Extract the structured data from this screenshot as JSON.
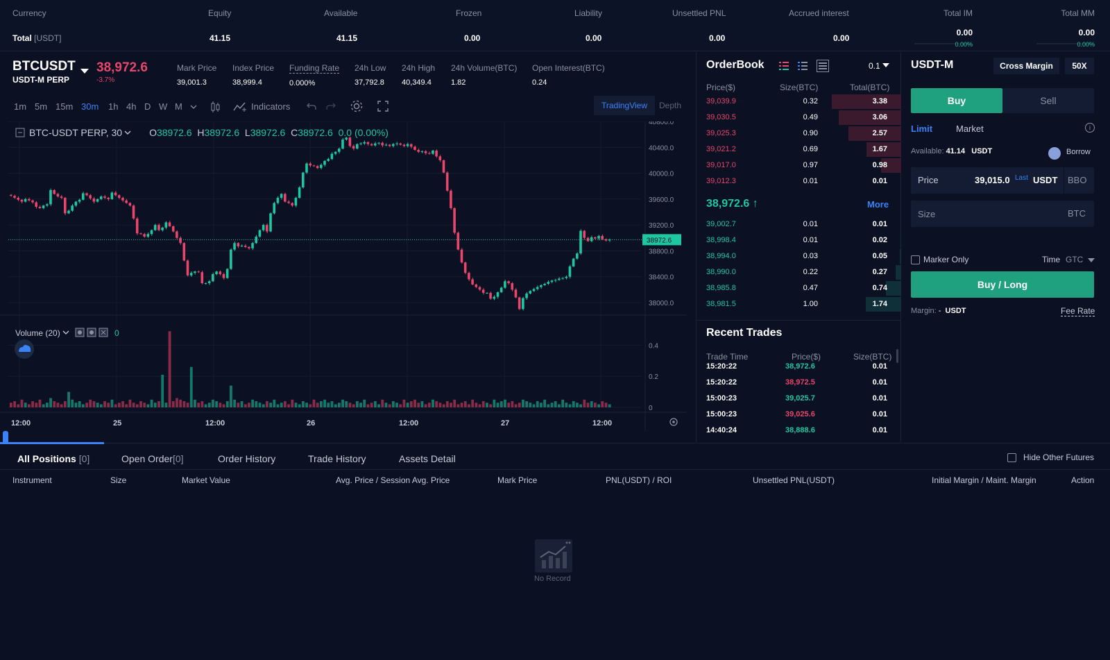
{
  "topbar": {
    "columns": [
      {
        "header": "Currency",
        "value": "Total",
        "value_suffix": "[USDT]"
      },
      {
        "header": "Equity",
        "value": "41.15"
      },
      {
        "header": "Available",
        "value": "41.15"
      },
      {
        "header": "Frozen",
        "value": "0.00"
      },
      {
        "header": "Liability",
        "value": "0.00"
      },
      {
        "header": "Unsettled PNL",
        "value": "0.00"
      },
      {
        "header": "Accrued interest",
        "value": "0.00"
      },
      {
        "header": "Total IM",
        "value": "0.00",
        "pct": "0.00%"
      },
      {
        "header": "Total MM",
        "value": "0.00",
        "pct": "0.00%"
      }
    ]
  },
  "ticker": {
    "symbol": "BTCUSDT",
    "type": "USDT-M PERP",
    "price": "38,972.6",
    "change": "-3.7%",
    "stats": [
      {
        "label": "Mark Price",
        "value": "39,001.3"
      },
      {
        "label": "Index Price",
        "value": "38,999.4"
      },
      {
        "label": "Funding Rate",
        "value": "0.000%"
      },
      {
        "label": "24h Low",
        "value": "37,792.8"
      },
      {
        "label": "24h High",
        "value": "40,349.4"
      },
      {
        "label": "24h Volume(BTC)",
        "value": "1.82"
      },
      {
        "label": "Open Interest(BTC)",
        "value": "0.24"
      }
    ]
  },
  "toolbar": {
    "timeframes": [
      "1m",
      "5m",
      "15m",
      "30m",
      "1h",
      "4h",
      "D",
      "W",
      "M"
    ],
    "active_timeframe": "30m",
    "indicators_label": "Indicators",
    "tradingview_label": "TradingView",
    "depth_label": "Depth"
  },
  "chart_legend": {
    "title": "BTC-USDT PERP, 30",
    "o_label": "O",
    "o_value": "38972.6",
    "h_label": "H",
    "h_value": "38972.6",
    "l_label": "L",
    "l_value": "38972.6",
    "c_label": "C",
    "c_value": "38972.6",
    "change_value": "0.0 (0.00%)"
  },
  "volume_legend": {
    "label": "Volume (20)",
    "value": "0"
  },
  "chart_data": [
    {
      "type": "candlestick",
      "title": "BTC-USDT PERP, 30",
      "y_ticks": [
        "40800.0",
        "40400.0",
        "40000.0",
        "39600.0",
        "39200.0",
        "38800.0",
        "38400.0",
        "38000.0"
      ],
      "ylim": [
        37850,
        40800
      ],
      "x_ticks": [
        "12:00",
        "25",
        "12:00",
        "26",
        "12:00",
        "27",
        "12:00"
      ],
      "last_price_label": "38972.6",
      "last_price": 38972.6,
      "series": [
        {
          "name": "",
          "close": [
            39650,
            39620,
            39590,
            39560,
            39600,
            39580,
            39550,
            39480,
            39460,
            39500,
            39520,
            39740,
            39680,
            39640,
            39620,
            39380,
            39420,
            39500,
            39560,
            39590,
            39690,
            39660,
            39610,
            39560,
            39600,
            39640,
            39620,
            39600,
            39700,
            39660,
            39620,
            39580,
            39540,
            39500,
            39300,
            39070,
            39060,
            39020,
            39060,
            39120,
            39200,
            39120,
            39160,
            39240,
            39180,
            39100,
            39000,
            38920,
            38650,
            38420,
            38460,
            38480,
            38470,
            38300,
            38300,
            38330,
            38440,
            38480,
            38440,
            38380,
            38520,
            38820,
            38920,
            38870,
            38880,
            38860,
            38840,
            38920,
            39020,
            39120,
            39200,
            39100,
            39380,
            39540,
            39620,
            39680,
            39560,
            39540,
            39500,
            39620,
            39780,
            40010,
            40150,
            40120,
            40110,
            40080,
            40130,
            40190,
            40220,
            40300,
            40330,
            40380,
            40520,
            40550,
            40420,
            40380,
            40450,
            40460,
            40480,
            40450,
            40430,
            40460,
            40470,
            40430,
            40440,
            40420,
            40450,
            40460,
            40440,
            40420,
            40450,
            40410,
            40360,
            40330,
            40340,
            40310,
            40300,
            40350,
            40260,
            40200,
            40010,
            39730,
            39460,
            39080,
            38820,
            38620,
            38460,
            38360,
            38280,
            38240,
            38200,
            38150,
            38150,
            38060,
            38090,
            38160,
            38230,
            38330,
            38300,
            38200,
            38080,
            37900,
            38070,
            38140,
            38180,
            38210,
            38240,
            38270,
            38290,
            38320,
            38340,
            38350,
            38370,
            38380,
            38400,
            38560,
            38680,
            38760,
            39110,
            39000,
            38950,
            39010,
            38990,
            39030,
            38980,
            38960,
            38972.6
          ]
        }
      ]
    },
    {
      "type": "bar",
      "title": "Volume (20)",
      "y_ticks": [
        "0.4",
        "0.2",
        "0"
      ],
      "ylim": [
        0,
        0.5
      ],
      "series": [
        {
          "name": "Volume",
          "values": [
            0.03,
            0.04,
            0.02,
            0.05,
            0.03,
            0.02,
            0.04,
            0.03,
            0.05,
            0.02,
            0.03,
            0.06,
            0.04,
            0.03,
            0.02,
            0.04,
            0.1,
            0.05,
            0.03,
            0.04,
            0.02,
            0.03,
            0.05,
            0.04,
            0.03,
            0.02,
            0.04,
            0.03,
            0.05,
            0.02,
            0.03,
            0.04,
            0.02,
            0.05,
            0.03,
            0.02,
            0.04,
            0.03,
            0.02,
            0.05,
            0.03,
            0.04,
            0.21,
            0.03,
            0.49,
            0.04,
            0.06,
            0.05,
            0.04,
            0.03,
            0.26,
            0.05,
            0.03,
            0.04,
            0.02,
            0.03,
            0.05,
            0.04,
            0.03,
            0.02,
            0.04,
            0.14,
            0.05,
            0.03,
            0.04,
            0.02,
            0.03,
            0.05,
            0.04,
            0.03,
            0.02,
            0.04,
            0.03,
            0.05,
            0.02,
            0.03,
            0.04,
            0.02,
            0.05,
            0.03,
            0.02,
            0.04,
            0.03,
            0.02,
            0.05,
            0.03,
            0.04,
            0.05,
            0.03,
            0.04,
            0.02,
            0.03,
            0.05,
            0.04,
            0.03,
            0.02,
            0.04,
            0.03,
            0.05,
            0.02,
            0.03,
            0.04,
            0.02,
            0.05,
            0.03,
            0.02,
            0.04,
            0.03,
            0.02,
            0.05,
            0.03,
            0.04,
            0.05,
            0.03,
            0.04,
            0.02,
            0.03,
            0.05,
            0.04,
            0.03,
            0.02,
            0.04,
            0.03,
            0.05,
            0.02,
            0.03,
            0.04,
            0.02,
            0.05,
            0.03,
            0.02,
            0.04,
            0.03,
            0.02,
            0.05,
            0.03,
            0.04,
            0.05,
            0.03,
            0.04,
            0.02,
            0.03,
            0.05,
            0.04,
            0.03,
            0.02,
            0.04,
            0.03,
            0.05,
            0.02,
            0.03,
            0.04,
            0.02,
            0.05,
            0.03,
            0.02,
            0.04,
            0.03,
            0.02,
            0.05,
            0.03,
            0.04,
            0.03,
            0.02,
            0.04,
            0.03,
            0.02
          ]
        }
      ]
    }
  ],
  "orderbook": {
    "title": "OrderBook",
    "precision": "0.1",
    "headers": {
      "price": "Price($)",
      "size": "Size(BTC)",
      "total": "Total(BTC)"
    },
    "asks": [
      {
        "price": "39,039.9",
        "size": "0.32",
        "total": "3.38",
        "depth": 1.0
      },
      {
        "price": "39,030.5",
        "size": "0.49",
        "total": "3.06",
        "depth": 0.9
      },
      {
        "price": "39,025.3",
        "size": "0.90",
        "total": "2.57",
        "depth": 0.76
      },
      {
        "price": "39,021.2",
        "size": "0.69",
        "total": "1.67",
        "depth": 0.5
      },
      {
        "price": "39,017.0",
        "size": "0.97",
        "total": "0.98",
        "depth": 0.29
      },
      {
        "price": "39,012.3",
        "size": "0.01",
        "total": "0.01",
        "depth": 0.0
      }
    ],
    "mid_price": "38,972.6",
    "mid_arrow": "↑",
    "more_label": "More",
    "bids": [
      {
        "price": "39,002.7",
        "size": "0.01",
        "total": "0.01",
        "depth": 0.0
      },
      {
        "price": "38,998.4",
        "size": "0.01",
        "total": "0.02",
        "depth": 0.01
      },
      {
        "price": "38,994.0",
        "size": "0.03",
        "total": "0.05",
        "depth": 0.015
      },
      {
        "price": "38,990.0",
        "size": "0.22",
        "total": "0.27",
        "depth": 0.08
      },
      {
        "price": "38,985.8",
        "size": "0.47",
        "total": "0.74",
        "depth": 0.22
      },
      {
        "price": "38,981.5",
        "size": "1.00",
        "total": "1.74",
        "depth": 0.51
      }
    ]
  },
  "recent_trades": {
    "title": "Recent Trades",
    "headers": {
      "time": "Trade Time",
      "price": "Price($)",
      "size": "Size(BTC)"
    },
    "rows": [
      {
        "time": "15:20:22",
        "price": "38,972.6",
        "size": "0.01",
        "side": "buy"
      },
      {
        "time": "15:20:22",
        "price": "38,972.5",
        "size": "0.01",
        "side": "sell"
      },
      {
        "time": "15:00:23",
        "price": "39,025.7",
        "size": "0.01",
        "side": "buy"
      },
      {
        "time": "15:00:23",
        "price": "39,025.6",
        "size": "0.01",
        "side": "sell"
      },
      {
        "time": "14:40:24",
        "price": "38,888.6",
        "size": "0.01",
        "side": "buy"
      }
    ]
  },
  "trade_panel": {
    "title": "USDT-M",
    "cross_margin": "Cross Margin",
    "leverage": "50X",
    "buy_tab": "Buy",
    "sell_tab": "Sell",
    "limit_tab": "Limit",
    "market_tab": "Market",
    "available_label": "Available:",
    "available_value": "41.14",
    "available_unit": "USDT",
    "borrow_label": "Borrow",
    "price_label": "Price",
    "price_value": "39,015.0",
    "price_last": "Last",
    "price_unit": "USDT",
    "bbo_label": "BBO",
    "size_placeholder": "Size",
    "size_unit": "BTC",
    "maker_only": "Marker Only",
    "time_label": "Time",
    "time_value": "GTC",
    "submit_label": "Buy / Long",
    "margin_label": "Margin:",
    "margin_value": "-",
    "margin_unit": "USDT",
    "fee_rate": "Fee Rate"
  },
  "bottom": {
    "tabs": [
      {
        "label": "All Positions",
        "count": "[0]"
      },
      {
        "label": "Open Order",
        "count": "[0]"
      },
      {
        "label": "Order History",
        "count": ""
      },
      {
        "label": "Trade History",
        "count": ""
      },
      {
        "label": "Assets Detail",
        "count": ""
      }
    ],
    "hide_other": "Hide Other Futures",
    "columns": [
      "Instrument",
      "Size",
      "Market Value",
      "Avg. Price / Session Avg. Price",
      "Mark Price",
      "PNL(USDT) / ROI",
      "Unsettled PNL(USDT)",
      "Initial Margin / Maint. Margin",
      "Action"
    ],
    "empty_text": "No Record"
  },
  "colors": {
    "up": "#1fc7a0",
    "down": "#e8466b",
    "accent": "#3b82f6",
    "buy": "#1fa07e",
    "bg": "#0b1022"
  }
}
